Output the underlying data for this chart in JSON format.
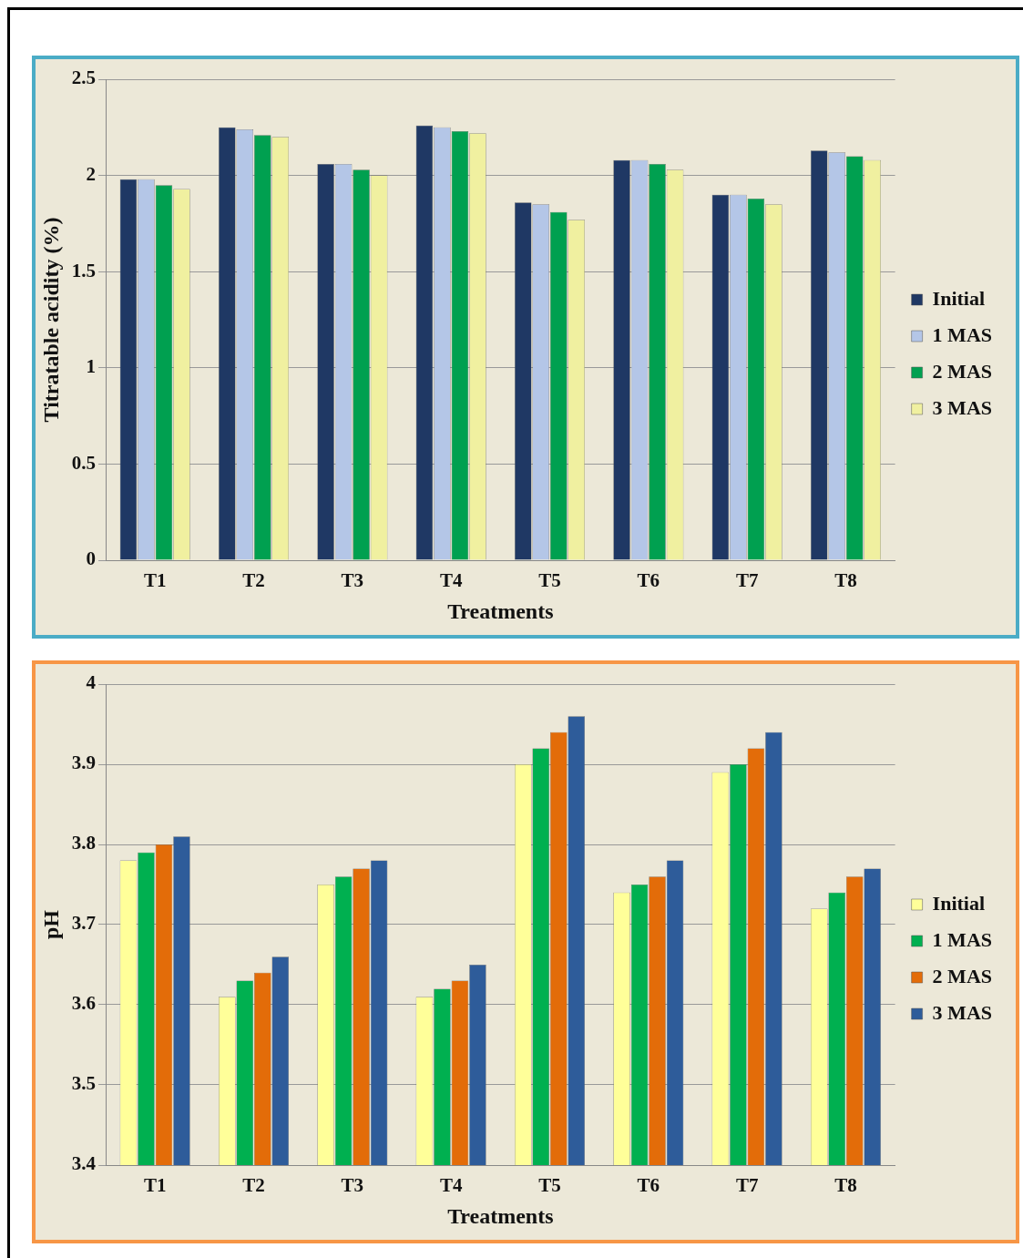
{
  "chart_data": [
    {
      "type": "bar",
      "xlabel": "Treatments",
      "ylabel": "Titratable acidity (%)",
      "categories": [
        "T1",
        "T2",
        "T3",
        "T4",
        "T5",
        "T6",
        "T7",
        "T8"
      ],
      "series": [
        {
          "name": "Initial",
          "color": "#1f3864",
          "values": [
            1.98,
            2.25,
            2.06,
            2.26,
            1.86,
            2.08,
            1.9,
            2.13
          ]
        },
        {
          "name": "1 MAS",
          "color": "#b4c6e7",
          "values": [
            1.98,
            2.24,
            2.06,
            2.25,
            1.85,
            2.08,
            1.9,
            2.12
          ]
        },
        {
          "name": "2 MAS",
          "color": "#00a050",
          "values": [
            1.95,
            2.21,
            2.03,
            2.23,
            1.81,
            2.06,
            1.88,
            2.1
          ]
        },
        {
          "name": "3 MAS",
          "color": "#f0f0a0",
          "values": [
            1.93,
            2.2,
            2.0,
            2.22,
            1.77,
            2.03,
            1.85,
            2.08
          ]
        }
      ],
      "ylim": [
        0,
        2.5
      ],
      "yticks": [
        0,
        0.5,
        1,
        1.5,
        2,
        2.5
      ],
      "grid": "y",
      "legend": "right"
    },
    {
      "type": "bar",
      "xlabel": "Treatments",
      "ylabel": "pH",
      "categories": [
        "T1",
        "T2",
        "T3",
        "T4",
        "T5",
        "T6",
        "T7",
        "T8"
      ],
      "series": [
        {
          "name": "Initial",
          "color": "#ffff99",
          "values": [
            3.78,
            3.61,
            3.75,
            3.61,
            3.9,
            3.74,
            3.89,
            3.72
          ]
        },
        {
          "name": "1 MAS",
          "color": "#00b050",
          "values": [
            3.79,
            3.63,
            3.76,
            3.62,
            3.92,
            3.75,
            3.9,
            3.74
          ]
        },
        {
          "name": "2 MAS",
          "color": "#e36c09",
          "values": [
            3.8,
            3.64,
            3.77,
            3.63,
            3.94,
            3.76,
            3.92,
            3.76
          ]
        },
        {
          "name": "3 MAS",
          "color": "#2e5c9a",
          "values": [
            3.81,
            3.66,
            3.78,
            3.65,
            3.96,
            3.78,
            3.94,
            3.77
          ]
        }
      ],
      "ylim": [
        3.4,
        4
      ],
      "yticks": [
        3.4,
        3.5,
        3.6,
        3.7,
        3.8,
        3.9,
        4
      ],
      "grid": "y",
      "legend": "right"
    }
  ]
}
